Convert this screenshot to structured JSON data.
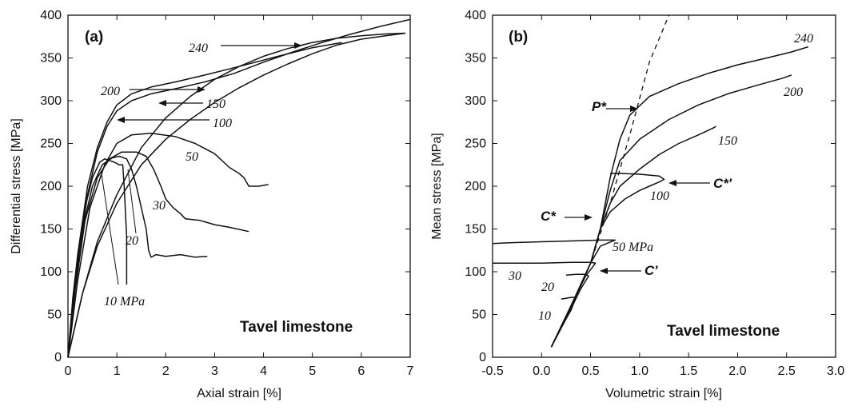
{
  "chart_data": [
    {
      "type": "line",
      "panel_label": "(a)",
      "xlabel": "Axial strain [%]",
      "ylabel": "Differential stress [MPa]",
      "xlim": [
        0,
        7
      ],
      "ylim": [
        0,
        400
      ],
      "xticks": [
        0,
        1,
        2,
        3,
        4,
        5,
        6,
        7
      ],
      "yticks": [
        0,
        50,
        100,
        150,
        200,
        250,
        300,
        350,
        400
      ],
      "watermark": "Tavel limestone",
      "series": [
        {
          "name": "10 MPa",
          "x": [
            0,
            0.1,
            0.2,
            0.35,
            0.5,
            0.65,
            0.75,
            0.85,
            0.95,
            1.05,
            1.12,
            1.15,
            1.2,
            1.2
          ],
          "y": [
            0,
            70,
            120,
            175,
            210,
            228,
            232,
            230,
            228,
            225,
            225,
            200,
            140,
            85
          ]
        },
        {
          "name": "20",
          "x": [
            0,
            0.12,
            0.3,
            0.5,
            0.7,
            0.9,
            1.05,
            1.2,
            1.3,
            1.4,
            1.5,
            1.6,
            1.65,
            1.7,
            1.8,
            2.0,
            2.3,
            2.6,
            2.85
          ],
          "y": [
            0,
            75,
            150,
            200,
            225,
            233,
            235,
            232,
            220,
            200,
            175,
            150,
            125,
            117,
            120,
            118,
            120,
            117,
            118
          ]
        },
        {
          "name": "30",
          "x": [
            0,
            0.15,
            0.35,
            0.6,
            0.85,
            1.1,
            1.4,
            1.6,
            1.75,
            1.9,
            2.0,
            2.15,
            2.3,
            2.4,
            2.7,
            3.0,
            3.3,
            3.7
          ],
          "y": [
            0,
            80,
            160,
            210,
            232,
            240,
            240,
            235,
            220,
            200,
            185,
            175,
            168,
            162,
            160,
            155,
            152,
            147
          ]
        },
        {
          "name": "50",
          "x": [
            0,
            0.2,
            0.45,
            0.75,
            1.0,
            1.3,
            1.7,
            2.2,
            2.6,
            3.0,
            3.3,
            3.5,
            3.6,
            3.65,
            3.7,
            3.9,
            4.1
          ],
          "y": [
            0,
            90,
            175,
            225,
            250,
            260,
            262,
            258,
            250,
            238,
            222,
            215,
            210,
            205,
            200,
            200,
            202
          ]
        },
        {
          "name": "100",
          "x": [
            0,
            0.3,
            0.6,
            1.0,
            1.5,
            2.0,
            2.5,
            3.0,
            3.5,
            4.0,
            4.5,
            5.0,
            5.5,
            6.0,
            6.5,
            6.9
          ],
          "y": [
            0,
            75,
            130,
            180,
            225,
            255,
            278,
            298,
            315,
            330,
            343,
            355,
            365,
            372,
            376,
            379
          ]
        },
        {
          "name": "150",
          "x": [
            0,
            0.3,
            0.6,
            1.0,
            1.5,
            2.0,
            2.5,
            3.0,
            3.5,
            4.0,
            4.5,
            5.0,
            5.5,
            6.0,
            6.5,
            6.9
          ],
          "y": [
            0,
            75,
            135,
            190,
            245,
            280,
            305,
            325,
            340,
            352,
            361,
            368,
            373,
            376,
            378,
            379
          ]
        },
        {
          "name": "200",
          "x": [
            0,
            0.2,
            0.4,
            0.6,
            0.8,
            1.0,
            1.3,
            1.7,
            2.2,
            2.8,
            3.5,
            4.3,
            5.0,
            5.6
          ],
          "y": [
            0,
            120,
            200,
            245,
            275,
            295,
            308,
            316,
            322,
            330,
            340,
            352,
            362,
            368
          ]
        },
        {
          "name": "240",
          "x": [
            0,
            0.2,
            0.4,
            0.6,
            0.8,
            1.0,
            1.3,
            1.7,
            2.2,
            2.8,
            3.4,
            4.0,
            4.6,
            5.2,
            5.8,
            6.4,
            7.0
          ],
          "y": [
            0,
            110,
            190,
            240,
            270,
            288,
            300,
            308,
            314,
            322,
            332,
            345,
            357,
            368,
            378,
            387,
            395
          ]
        }
      ],
      "annotations": {
        "l240": "240",
        "l200": "200",
        "l150": "150",
        "l100": "100",
        "l50": "50",
        "l30": "30",
        "l20": "20",
        "l10": "10 MPa"
      }
    },
    {
      "type": "line",
      "panel_label": "(b)",
      "xlabel": "Volumetric strain [%]",
      "ylabel": "Mean stress [MPa]",
      "xlim": [
        -0.5,
        3.0
      ],
      "ylim": [
        0,
        400
      ],
      "xticks": [
        -0.5,
        0.0,
        0.5,
        1.0,
        1.5,
        2.0,
        2.5,
        3.0
      ],
      "xtick_labels": [
        "-0.5",
        "0.0",
        "0.5",
        "1.0",
        "1.5",
        "2.0",
        "2.5",
        "3.0"
      ],
      "yticks": [
        0,
        50,
        100,
        150,
        200,
        250,
        300,
        350,
        400
      ],
      "watermark": "Tavel limestone",
      "hydrostat_dashed": {
        "x": [
          0.1,
          0.3,
          0.5,
          0.7,
          0.9,
          1.1,
          1.3
        ],
        "y": [
          12,
          60,
          110,
          180,
          260,
          345,
          400
        ]
      },
      "series": [
        {
          "name": "10",
          "x": [
            0.1,
            0.2,
            0.3,
            0.35,
            0.3,
            0.2
          ],
          "y": [
            12,
            35,
            55,
            70,
            70,
            68
          ]
        },
        {
          "name": "20",
          "x": [
            0.1,
            0.25,
            0.4,
            0.48,
            0.45,
            0.35,
            0.25
          ],
          "y": [
            12,
            45,
            80,
            95,
            97,
            97,
            96
          ]
        },
        {
          "name": "30",
          "x": [
            0.1,
            0.3,
            0.45,
            0.55,
            0.5,
            0.3,
            0.0,
            -0.3,
            -0.5
          ],
          "y": [
            12,
            60,
            95,
            110,
            111,
            111,
            110,
            110,
            110
          ]
        },
        {
          "name": "50 MPa",
          "x": [
            0.1,
            0.3,
            0.5,
            0.6,
            0.75,
            0.6,
            0.3,
            0.0,
            -0.3,
            -0.5
          ],
          "y": [
            12,
            60,
            110,
            130,
            137,
            137,
            136,
            135,
            134,
            133
          ]
        },
        {
          "name": "100",
          "x": [
            0.1,
            0.3,
            0.5,
            0.6,
            0.7,
            0.85,
            1.0,
            1.1,
            1.2,
            1.25,
            1.2,
            1.0,
            0.8,
            0.7
          ],
          "y": [
            12,
            60,
            110,
            150,
            170,
            185,
            195,
            200,
            205,
            208,
            212,
            214,
            215,
            215
          ]
        },
        {
          "name": "150",
          "x": [
            0.1,
            0.3,
            0.5,
            0.6,
            0.7,
            0.8,
            1.0,
            1.2,
            1.4,
            1.6,
            1.75,
            1.78
          ],
          "y": [
            12,
            60,
            110,
            150,
            180,
            200,
            220,
            237,
            250,
            260,
            268,
            270
          ]
        },
        {
          "name": "200",
          "x": [
            0.1,
            0.3,
            0.5,
            0.6,
            0.7,
            0.8,
            1.0,
            1.3,
            1.6,
            1.9,
            2.2,
            2.45,
            2.55
          ],
          "y": [
            12,
            60,
            110,
            150,
            195,
            230,
            255,
            278,
            295,
            308,
            318,
            326,
            330
          ]
        },
        {
          "name": "240",
          "x": [
            0.1,
            0.3,
            0.5,
            0.6,
            0.7,
            0.8,
            0.9,
            1.1,
            1.4,
            1.7,
            2.0,
            2.3,
            2.55,
            2.72
          ],
          "y": [
            12,
            60,
            110,
            150,
            210,
            255,
            283,
            305,
            320,
            332,
            342,
            350,
            357,
            363
          ]
        }
      ],
      "annotations": {
        "l240": "240",
        "l200": "200",
        "l150": "150",
        "l100": "100",
        "l50": "50 MPa",
        "l30": "30",
        "l20": "20",
        "l10": "10",
        "pstar": "P*",
        "cstar": "C*",
        "cstarp": "C*'",
        "cprime": "C'"
      }
    }
  ]
}
